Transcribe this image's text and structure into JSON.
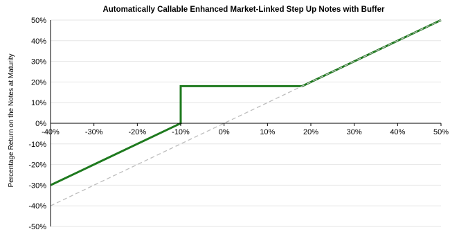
{
  "chart_data": {
    "type": "line",
    "title": "Automatically Callable Enhanced Market-Linked Step Up Notes with Buffer",
    "xlabel": "",
    "ylabel": "Percentage Return on the Notes at Maturity",
    "xlim": [
      -40,
      50
    ],
    "ylim": [
      -50,
      50
    ],
    "x_ticks": [
      "-40%",
      "-30%",
      "-20%",
      "-10%",
      "0%",
      "10%",
      "20%",
      "30%",
      "40%",
      "50%"
    ],
    "y_ticks": [
      "50%",
      "40%",
      "30%",
      "20%",
      "10%",
      "0%",
      "-10%",
      "-20%",
      "-30%",
      "-40%",
      "-50%"
    ],
    "grid": true,
    "colors": {
      "notes": "#1e7a1e",
      "underlying": "#bdbdbd"
    },
    "series": [
      {
        "style": "solid",
        "x": [
          -40,
          -10,
          -10,
          18,
          50
        ],
        "y": [
          -30,
          0,
          18,
          18,
          50
        ]
      },
      {
        "style": "dashed",
        "x": [
          -40,
          50
        ],
        "y": [
          -40,
          50
        ]
      }
    ]
  }
}
